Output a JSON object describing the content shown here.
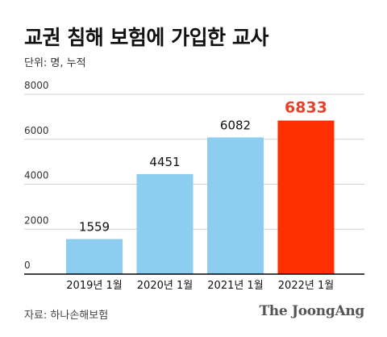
{
  "header": {
    "title": "교권 침해 보험에 가입한 교사",
    "unit": "단위: 명, 누적"
  },
  "footer": {
    "source": "자료: 하나손해보험",
    "logo_text": "The JoongAng"
  },
  "colors": {
    "bar": "#8ccdf0",
    "highlight_bar": "#ff3000",
    "highlight_label": "#e8402a",
    "grid": "#cfcfcf",
    "axis": "#000000",
    "text": "#111111",
    "tick": "#333333"
  },
  "chart_data": {
    "type": "bar",
    "title": "교권 침해 보험에 가입한 교사",
    "xlabel": "",
    "ylabel": "",
    "categories": [
      "2019년 1월",
      "2020년 1월",
      "2021년 1월",
      "2022년 1월"
    ],
    "values": [
      1559,
      4451,
      6082,
      6833
    ],
    "ylim": [
      0,
      8000
    ],
    "yticks": [
      0,
      2000,
      4000,
      6000,
      8000
    ],
    "highlight_index": 3,
    "grid": true
  }
}
